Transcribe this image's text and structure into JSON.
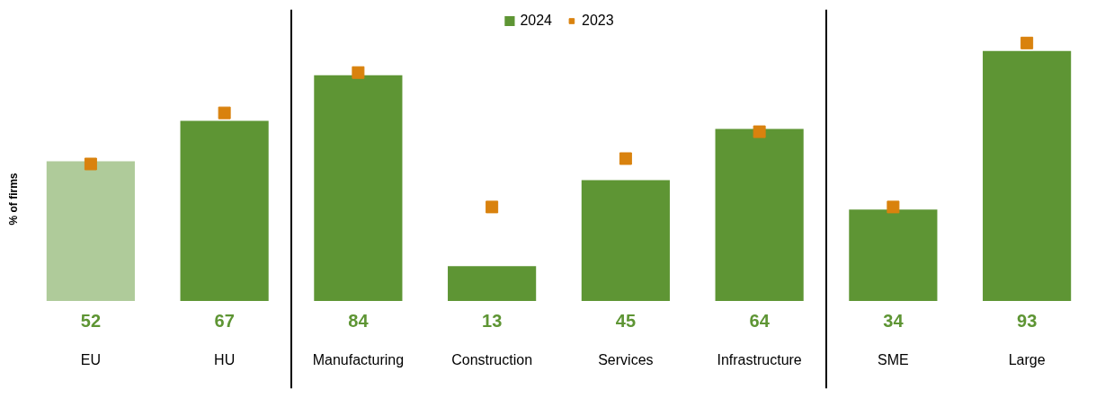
{
  "chart_data": {
    "type": "bar",
    "ylabel": "% of firms",
    "categories": [
      "EU",
      "HU",
      "Manufacturing",
      "Construction",
      "Services",
      "Infrastructure",
      "SME",
      "Large"
    ],
    "series": [
      {
        "name": "2024",
        "color": "#5e9534",
        "colors": [
          "#afcb9a",
          "#5e9534",
          "#5e9534",
          "#5e9534",
          "#5e9534",
          "#5e9534",
          "#5e9534",
          "#5e9534"
        ],
        "values": [
          52,
          67,
          84,
          13,
          45,
          64,
          34,
          93
        ],
        "value_labels": [
          "52",
          "67",
          "84",
          "13",
          "45",
          "64",
          "34",
          "93"
        ]
      },
      {
        "name": "2023",
        "type": "scatter",
        "marker": "square",
        "color": "#d9820e",
        "values": [
          51,
          70,
          85,
          35,
          53,
          63,
          35,
          96
        ]
      }
    ],
    "legend": "top"
  }
}
